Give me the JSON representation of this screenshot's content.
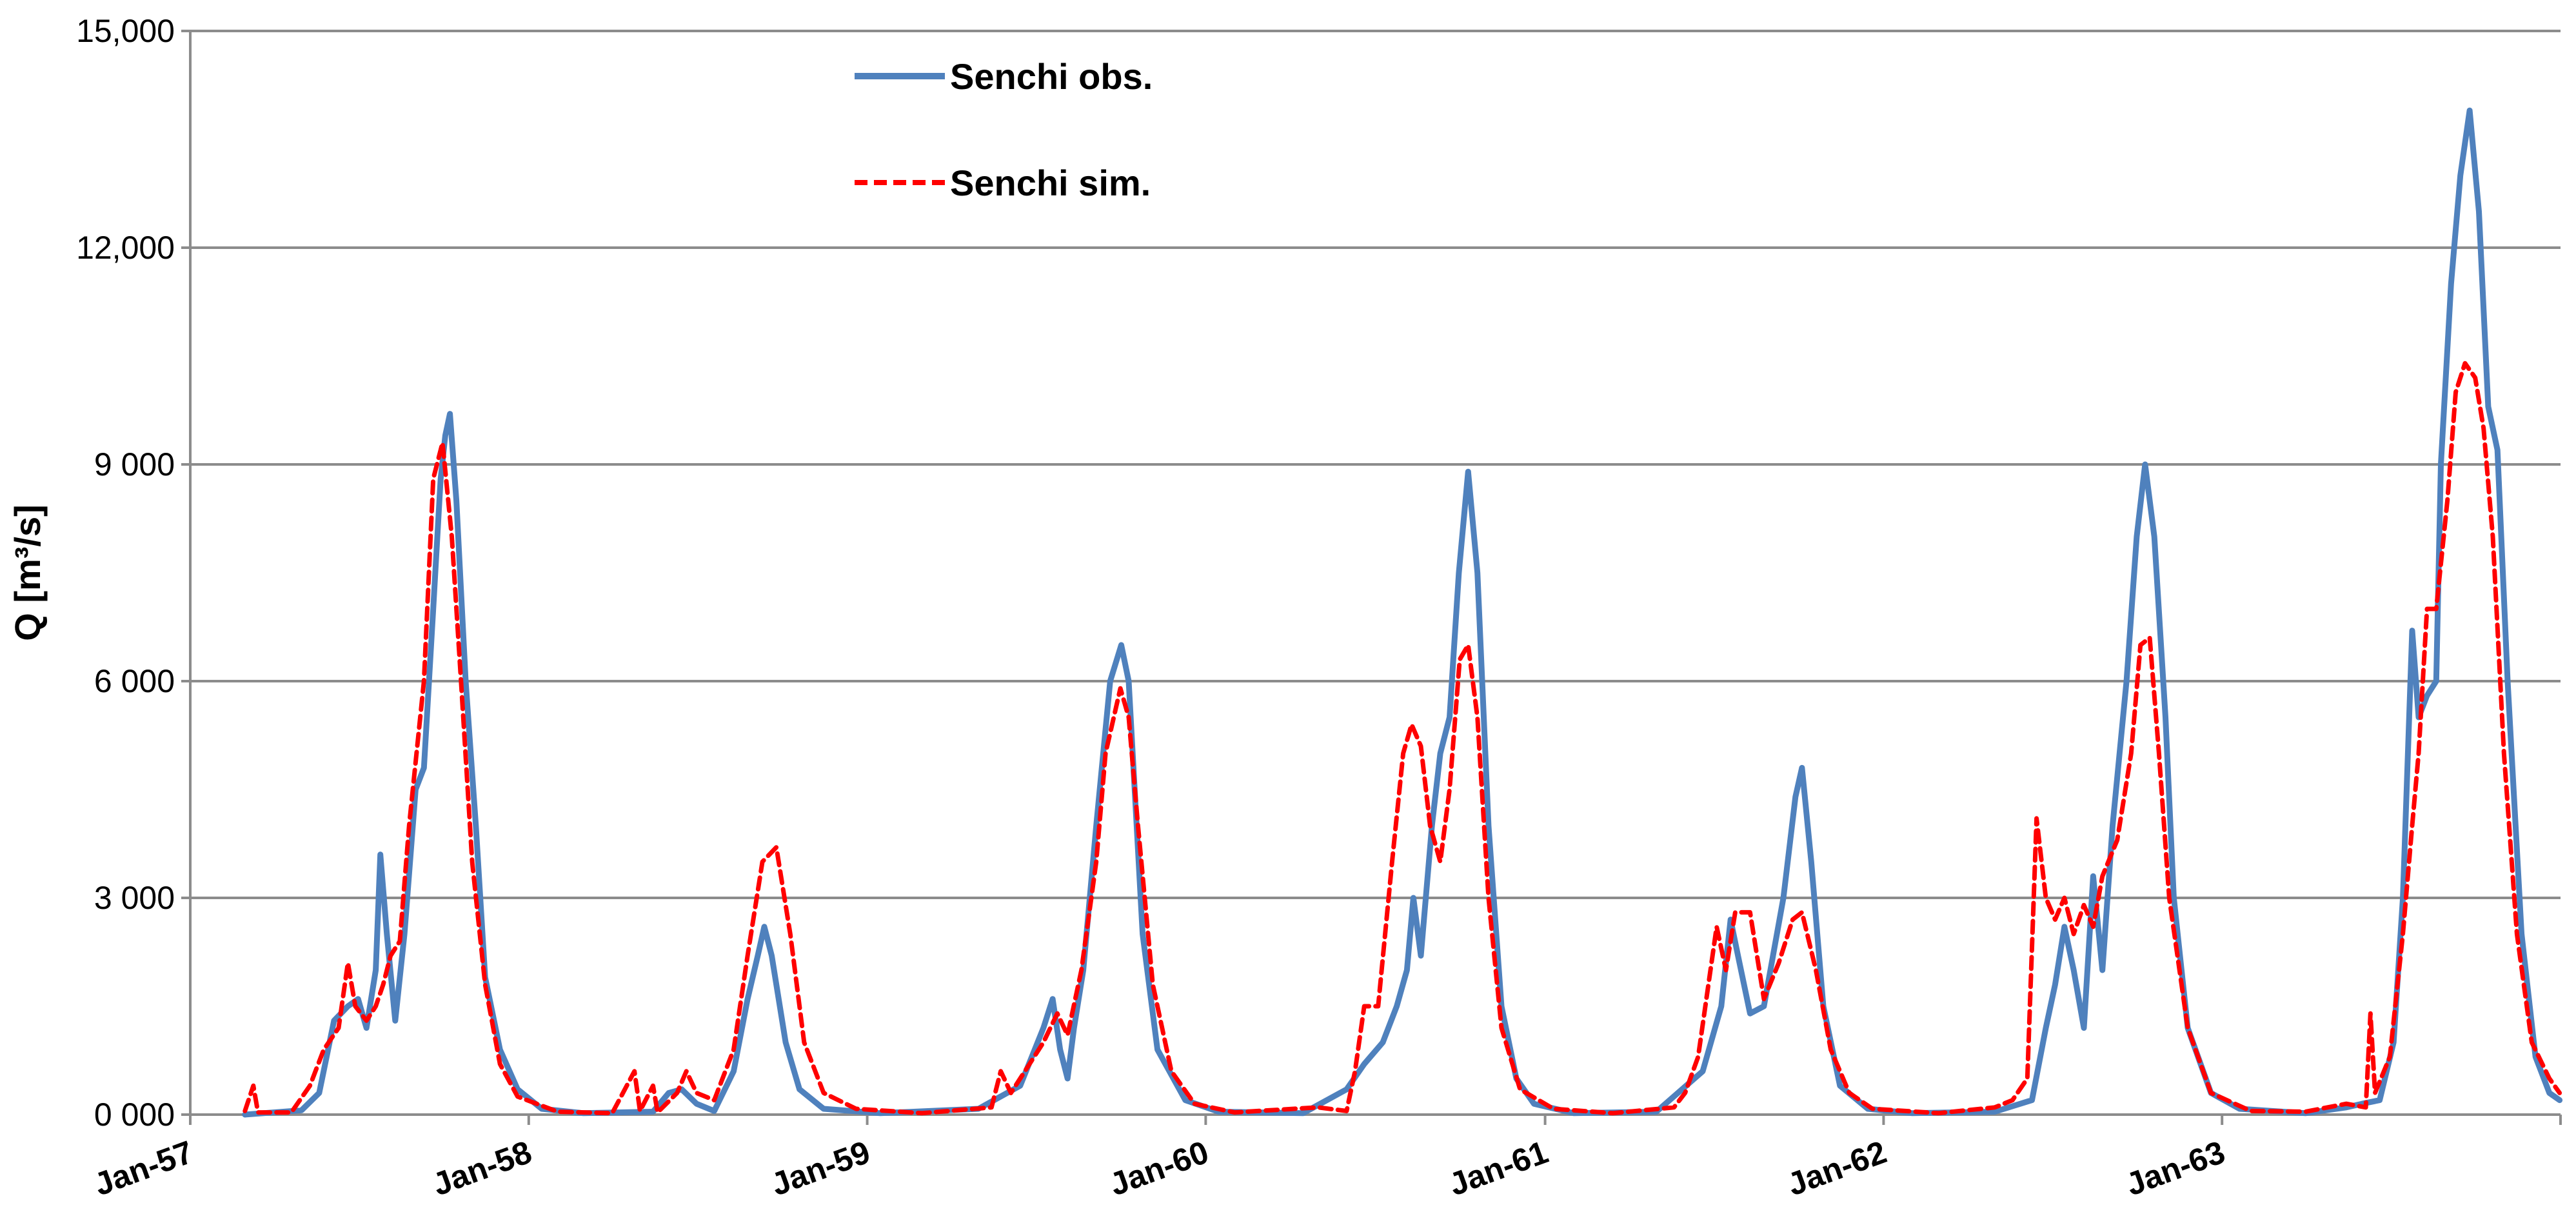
{
  "chart_data": {
    "type": "line",
    "title": "",
    "xlabel": "",
    "ylabel": "Q [m³/s]",
    "x_ticks": [
      "Jan-57",
      "Jan-58",
      "Jan-59",
      "Jan-60",
      "Jan-61",
      "Jan-62",
      "Jan-63"
    ],
    "y_ticks": [
      "0 000",
      "3 000",
      "6 000",
      "9 000",
      "12,000",
      "15,000"
    ],
    "y_tick_values": [
      0,
      3000,
      6000,
      9000,
      12000,
      15000
    ],
    "xlim": [
      "1957-01-01",
      "1963-12-31"
    ],
    "ylim": [
      0,
      15000
    ],
    "grid": "horizontal",
    "legend_position": "top-center",
    "series": [
      {
        "name": "Senchi obs.",
        "color": "#4F81BD",
        "style": "solid",
        "points": [
          [
            "1957-03-01",
            0
          ],
          [
            "1957-05-01",
            60
          ],
          [
            "1957-05-20",
            300
          ],
          [
            "1957-06-05",
            1300
          ],
          [
            "1957-06-20",
            1500
          ],
          [
            "1957-07-01",
            1600
          ],
          [
            "1957-07-10",
            1200
          ],
          [
            "1957-07-20",
            2000
          ],
          [
            "1957-07-25",
            3600
          ],
          [
            "1957-08-01",
            2500
          ],
          [
            "1957-08-10",
            1300
          ],
          [
            "1957-08-20",
            2500
          ],
          [
            "1957-09-01",
            4500
          ],
          [
            "1957-09-10",
            4800
          ],
          [
            "1957-09-20",
            7000
          ],
          [
            "1957-09-28",
            8800
          ],
          [
            "1957-10-03",
            9400
          ],
          [
            "1957-10-08",
            9700
          ],
          [
            "1957-10-15",
            8500
          ],
          [
            "1957-10-25",
            6000
          ],
          [
            "1957-11-05",
            4000
          ],
          [
            "1957-11-15",
            1900
          ],
          [
            "1957-12-01",
            900
          ],
          [
            "1957-12-20",
            350
          ],
          [
            "1958-01-15",
            80
          ],
          [
            "1958-03-01",
            20
          ],
          [
            "1958-05-15",
            40
          ],
          [
            "1958-06-01",
            300
          ],
          [
            "1958-06-15",
            350
          ],
          [
            "1958-07-01",
            150
          ],
          [
            "1958-07-20",
            50
          ],
          [
            "1958-08-10",
            600
          ],
          [
            "1958-08-25",
            1600
          ],
          [
            "1958-09-05",
            2200
          ],
          [
            "1958-09-12",
            2600
          ],
          [
            "1958-09-20",
            2200
          ],
          [
            "1958-10-05",
            1000
          ],
          [
            "1958-10-20",
            350
          ],
          [
            "1958-11-15",
            80
          ],
          [
            "1959-01-15",
            20
          ],
          [
            "1959-05-01",
            80
          ],
          [
            "1959-06-15",
            400
          ],
          [
            "1959-07-10",
            1200
          ],
          [
            "1959-07-20",
            1600
          ],
          [
            "1959-07-28",
            900
          ],
          [
            "1959-08-05",
            500
          ],
          [
            "1959-08-12",
            1200
          ],
          [
            "1959-08-22",
            2000
          ],
          [
            "1959-09-05",
            4000
          ],
          [
            "1959-09-20",
            6000
          ],
          [
            "1959-10-02",
            6500
          ],
          [
            "1959-10-10",
            6000
          ],
          [
            "1959-10-25",
            2500
          ],
          [
            "1959-11-10",
            900
          ],
          [
            "1959-12-10",
            200
          ],
          [
            "1960-01-15",
            40
          ],
          [
            "1960-04-15",
            20
          ],
          [
            "1960-06-01",
            350
          ],
          [
            "1960-06-20",
            700
          ],
          [
            "1960-07-10",
            1000
          ],
          [
            "1960-07-25",
            1500
          ],
          [
            "1960-08-05",
            2000
          ],
          [
            "1960-08-12",
            3000
          ],
          [
            "1960-08-20",
            2200
          ],
          [
            "1960-09-01",
            4000
          ],
          [
            "1960-09-10",
            5000
          ],
          [
            "1960-09-20",
            5500
          ],
          [
            "1960-09-30",
            7500
          ],
          [
            "1960-10-10",
            8900
          ],
          [
            "1960-10-20",
            7500
          ],
          [
            "1960-11-01",
            4000
          ],
          [
            "1960-11-15",
            1500
          ],
          [
            "1960-12-01",
            500
          ],
          [
            "1960-12-20",
            150
          ],
          [
            "1961-02-01",
            20
          ],
          [
            "1961-05-01",
            40
          ],
          [
            "1961-06-20",
            600
          ],
          [
            "1961-07-10",
            1500
          ],
          [
            "1961-07-20",
            2700
          ],
          [
            "1961-07-28",
            2200
          ],
          [
            "1961-08-10",
            1400
          ],
          [
            "1961-08-25",
            1500
          ],
          [
            "1961-09-15",
            3000
          ],
          [
            "1961-09-28",
            4400
          ],
          [
            "1961-10-05",
            4800
          ],
          [
            "1961-10-15",
            3500
          ],
          [
            "1961-10-28",
            1500
          ],
          [
            "1961-11-15",
            400
          ],
          [
            "1961-12-15",
            80
          ],
          [
            "1962-02-01",
            20
          ],
          [
            "1962-05-01",
            40
          ],
          [
            "1962-06-10",
            200
          ],
          [
            "1962-06-25",
            1200
          ],
          [
            "1962-07-05",
            1800
          ],
          [
            "1962-07-15",
            2600
          ],
          [
            "1962-07-25",
            2000
          ],
          [
            "1962-08-05",
            1200
          ],
          [
            "1962-08-15",
            3300
          ],
          [
            "1962-08-25",
            2000
          ],
          [
            "1962-09-05",
            4000
          ],
          [
            "1962-09-20",
            6000
          ],
          [
            "1962-10-01",
            8000
          ],
          [
            "1962-10-10",
            9000
          ],
          [
            "1962-10-20",
            8000
          ],
          [
            "1962-11-01",
            5500
          ],
          [
            "1962-11-10",
            3000
          ],
          [
            "1962-11-25",
            1200
          ],
          [
            "1962-12-20",
            300
          ],
          [
            "1963-01-20",
            80
          ],
          [
            "1963-04-01",
            20
          ],
          [
            "1963-05-15",
            100
          ],
          [
            "1963-06-01",
            150
          ],
          [
            "1963-06-20",
            200
          ],
          [
            "1963-07-05",
            1000
          ],
          [
            "1963-07-15",
            3000
          ],
          [
            "1963-07-25",
            6700
          ],
          [
            "1963-08-01",
            5500
          ],
          [
            "1963-08-10",
            5800
          ],
          [
            "1963-08-20",
            6000
          ],
          [
            "1963-08-25",
            9000
          ],
          [
            "1963-09-05",
            11500
          ],
          [
            "1963-09-15",
            13000
          ],
          [
            "1963-09-25",
            13900
          ],
          [
            "1963-10-05",
            12500
          ],
          [
            "1963-10-15",
            9800
          ],
          [
            "1963-10-25",
            9200
          ],
          [
            "1963-11-05",
            6000
          ],
          [
            "1963-11-20",
            2500
          ],
          [
            "1963-12-05",
            800
          ],
          [
            "1963-12-20",
            300
          ],
          [
            "1963-12-31",
            200
          ]
        ]
      },
      {
        "name": "Senchi sim.",
        "color": "#FF0000",
        "style": "dashed",
        "points": [
          [
            "1957-03-01",
            50
          ],
          [
            "1957-03-10",
            400
          ],
          [
            "1957-03-15",
            30
          ],
          [
            "1957-04-20",
            30
          ],
          [
            "1957-05-10",
            400
          ],
          [
            "1957-05-25",
            900
          ],
          [
            "1957-06-10",
            1200
          ],
          [
            "1957-06-20",
            2100
          ],
          [
            "1957-06-28",
            1500
          ],
          [
            "1957-07-10",
            1300
          ],
          [
            "1957-07-20",
            1500
          ],
          [
            "1957-07-28",
            1800
          ],
          [
            "1957-08-05",
            2200
          ],
          [
            "1957-08-15",
            2400
          ],
          [
            "1957-08-25",
            4000
          ],
          [
            "1957-09-10",
            6000
          ],
          [
            "1957-09-20",
            8800
          ],
          [
            "1957-09-30",
            9300
          ],
          [
            "1957-10-10",
            8000
          ],
          [
            "1957-10-20",
            6000
          ],
          [
            "1957-11-01",
            3500
          ],
          [
            "1957-11-15",
            1800
          ],
          [
            "1957-12-01",
            700
          ],
          [
            "1957-12-20",
            250
          ],
          [
            "1958-02-01",
            40
          ],
          [
            "1958-04-01",
            20
          ],
          [
            "1958-04-25",
            600
          ],
          [
            "1958-05-01",
            50
          ],
          [
            "1958-05-15",
            400
          ],
          [
            "1958-05-20",
            30
          ],
          [
            "1958-06-10",
            300
          ],
          [
            "1958-06-20",
            600
          ],
          [
            "1958-07-01",
            300
          ],
          [
            "1958-07-20",
            200
          ],
          [
            "1958-08-10",
            900
          ],
          [
            "1958-08-25",
            2200
          ],
          [
            "1958-09-10",
            3500
          ],
          [
            "1958-09-25",
            3700
          ],
          [
            "1958-10-10",
            2500
          ],
          [
            "1958-10-25",
            1000
          ],
          [
            "1958-11-15",
            300
          ],
          [
            "1958-12-20",
            80
          ],
          [
            "1959-03-01",
            20
          ],
          [
            "1959-05-15",
            100
          ],
          [
            "1959-05-25",
            600
          ],
          [
            "1959-06-05",
            300
          ],
          [
            "1959-06-25",
            700
          ],
          [
            "1959-07-10",
            1000
          ],
          [
            "1959-07-25",
            1400
          ],
          [
            "1959-08-05",
            1100
          ],
          [
            "1959-08-20",
            2000
          ],
          [
            "1959-09-05",
            3500
          ],
          [
            "1959-09-15",
            5000
          ],
          [
            "1959-10-01",
            5900
          ],
          [
            "1959-10-10",
            5500
          ],
          [
            "1959-10-20",
            4000
          ],
          [
            "1959-11-05",
            1800
          ],
          [
            "1959-11-25",
            600
          ],
          [
            "1959-12-20",
            150
          ],
          [
            "1960-02-01",
            30
          ],
          [
            "1960-05-01",
            100
          ],
          [
            "1960-06-01",
            50
          ],
          [
            "1960-06-10",
            600
          ],
          [
            "1960-06-20",
            1500
          ],
          [
            "1960-07-05",
            1500
          ],
          [
            "1960-07-20",
            3500
          ],
          [
            "1960-08-01",
            5000
          ],
          [
            "1960-08-10",
            5400
          ],
          [
            "1960-08-20",
            5100
          ],
          [
            "1960-08-30",
            4000
          ],
          [
            "1960-09-10",
            3500
          ],
          [
            "1960-09-20",
            4500
          ],
          [
            "1960-10-01",
            6300
          ],
          [
            "1960-10-10",
            6500
          ],
          [
            "1960-10-20",
            5500
          ],
          [
            "1960-11-01",
            3000
          ],
          [
            "1960-11-15",
            1200
          ],
          [
            "1960-12-05",
            350
          ],
          [
            "1961-01-10",
            80
          ],
          [
            "1961-03-15",
            20
          ],
          [
            "1961-05-20",
            100
          ],
          [
            "1961-06-01",
            300
          ],
          [
            "1961-06-15",
            800
          ],
          [
            "1961-07-05",
            2600
          ],
          [
            "1961-07-15",
            2000
          ],
          [
            "1961-07-25",
            2800
          ],
          [
            "1961-08-10",
            2800
          ],
          [
            "1961-08-25",
            1600
          ],
          [
            "1961-09-10",
            2100
          ],
          [
            "1961-09-25",
            2700
          ],
          [
            "1961-10-05",
            2800
          ],
          [
            "1961-10-20",
            2000
          ],
          [
            "1961-11-05",
            900
          ],
          [
            "1961-11-25",
            300
          ],
          [
            "1961-12-20",
            80
          ],
          [
            "1962-03-01",
            20
          ],
          [
            "1962-05-01",
            100
          ],
          [
            "1962-05-20",
            200
          ],
          [
            "1962-06-05",
            500
          ],
          [
            "1962-06-15",
            4100
          ],
          [
            "1962-06-25",
            3000
          ],
          [
            "1962-07-05",
            2700
          ],
          [
            "1962-07-15",
            3000
          ],
          [
            "1962-07-25",
            2500
          ],
          [
            "1962-08-05",
            2900
          ],
          [
            "1962-08-15",
            2600
          ],
          [
            "1962-08-25",
            3300
          ],
          [
            "1962-09-10",
            3800
          ],
          [
            "1962-09-25",
            5000
          ],
          [
            "1962-10-05",
            6500
          ],
          [
            "1962-10-15",
            6600
          ],
          [
            "1962-10-25",
            5000
          ],
          [
            "1962-11-05",
            3000
          ],
          [
            "1962-11-25",
            1200
          ],
          [
            "1962-12-20",
            300
          ],
          [
            "1963-02-01",
            50
          ],
          [
            "1963-04-01",
            40
          ],
          [
            "1963-05-15",
            150
          ],
          [
            "1963-06-05",
            100
          ],
          [
            "1963-06-10",
            1400
          ],
          [
            "1963-06-15",
            300
          ],
          [
            "1963-07-01",
            800
          ],
          [
            "1963-07-15",
            2500
          ],
          [
            "1963-07-25",
            4000
          ],
          [
            "1963-08-01",
            5000
          ],
          [
            "1963-08-10",
            7000
          ],
          [
            "1963-08-20",
            7000
          ],
          [
            "1963-09-01",
            8500
          ],
          [
            "1963-09-10",
            10000
          ],
          [
            "1963-09-20",
            10400
          ],
          [
            "1963-10-01",
            10200
          ],
          [
            "1963-10-10",
            9500
          ],
          [
            "1963-10-20",
            8000
          ],
          [
            "1963-11-01",
            5000
          ],
          [
            "1963-11-15",
            2500
          ],
          [
            "1963-12-01",
            1000
          ],
          [
            "1963-12-20",
            500
          ],
          [
            "1963-12-31",
            300
          ]
        ]
      }
    ]
  }
}
